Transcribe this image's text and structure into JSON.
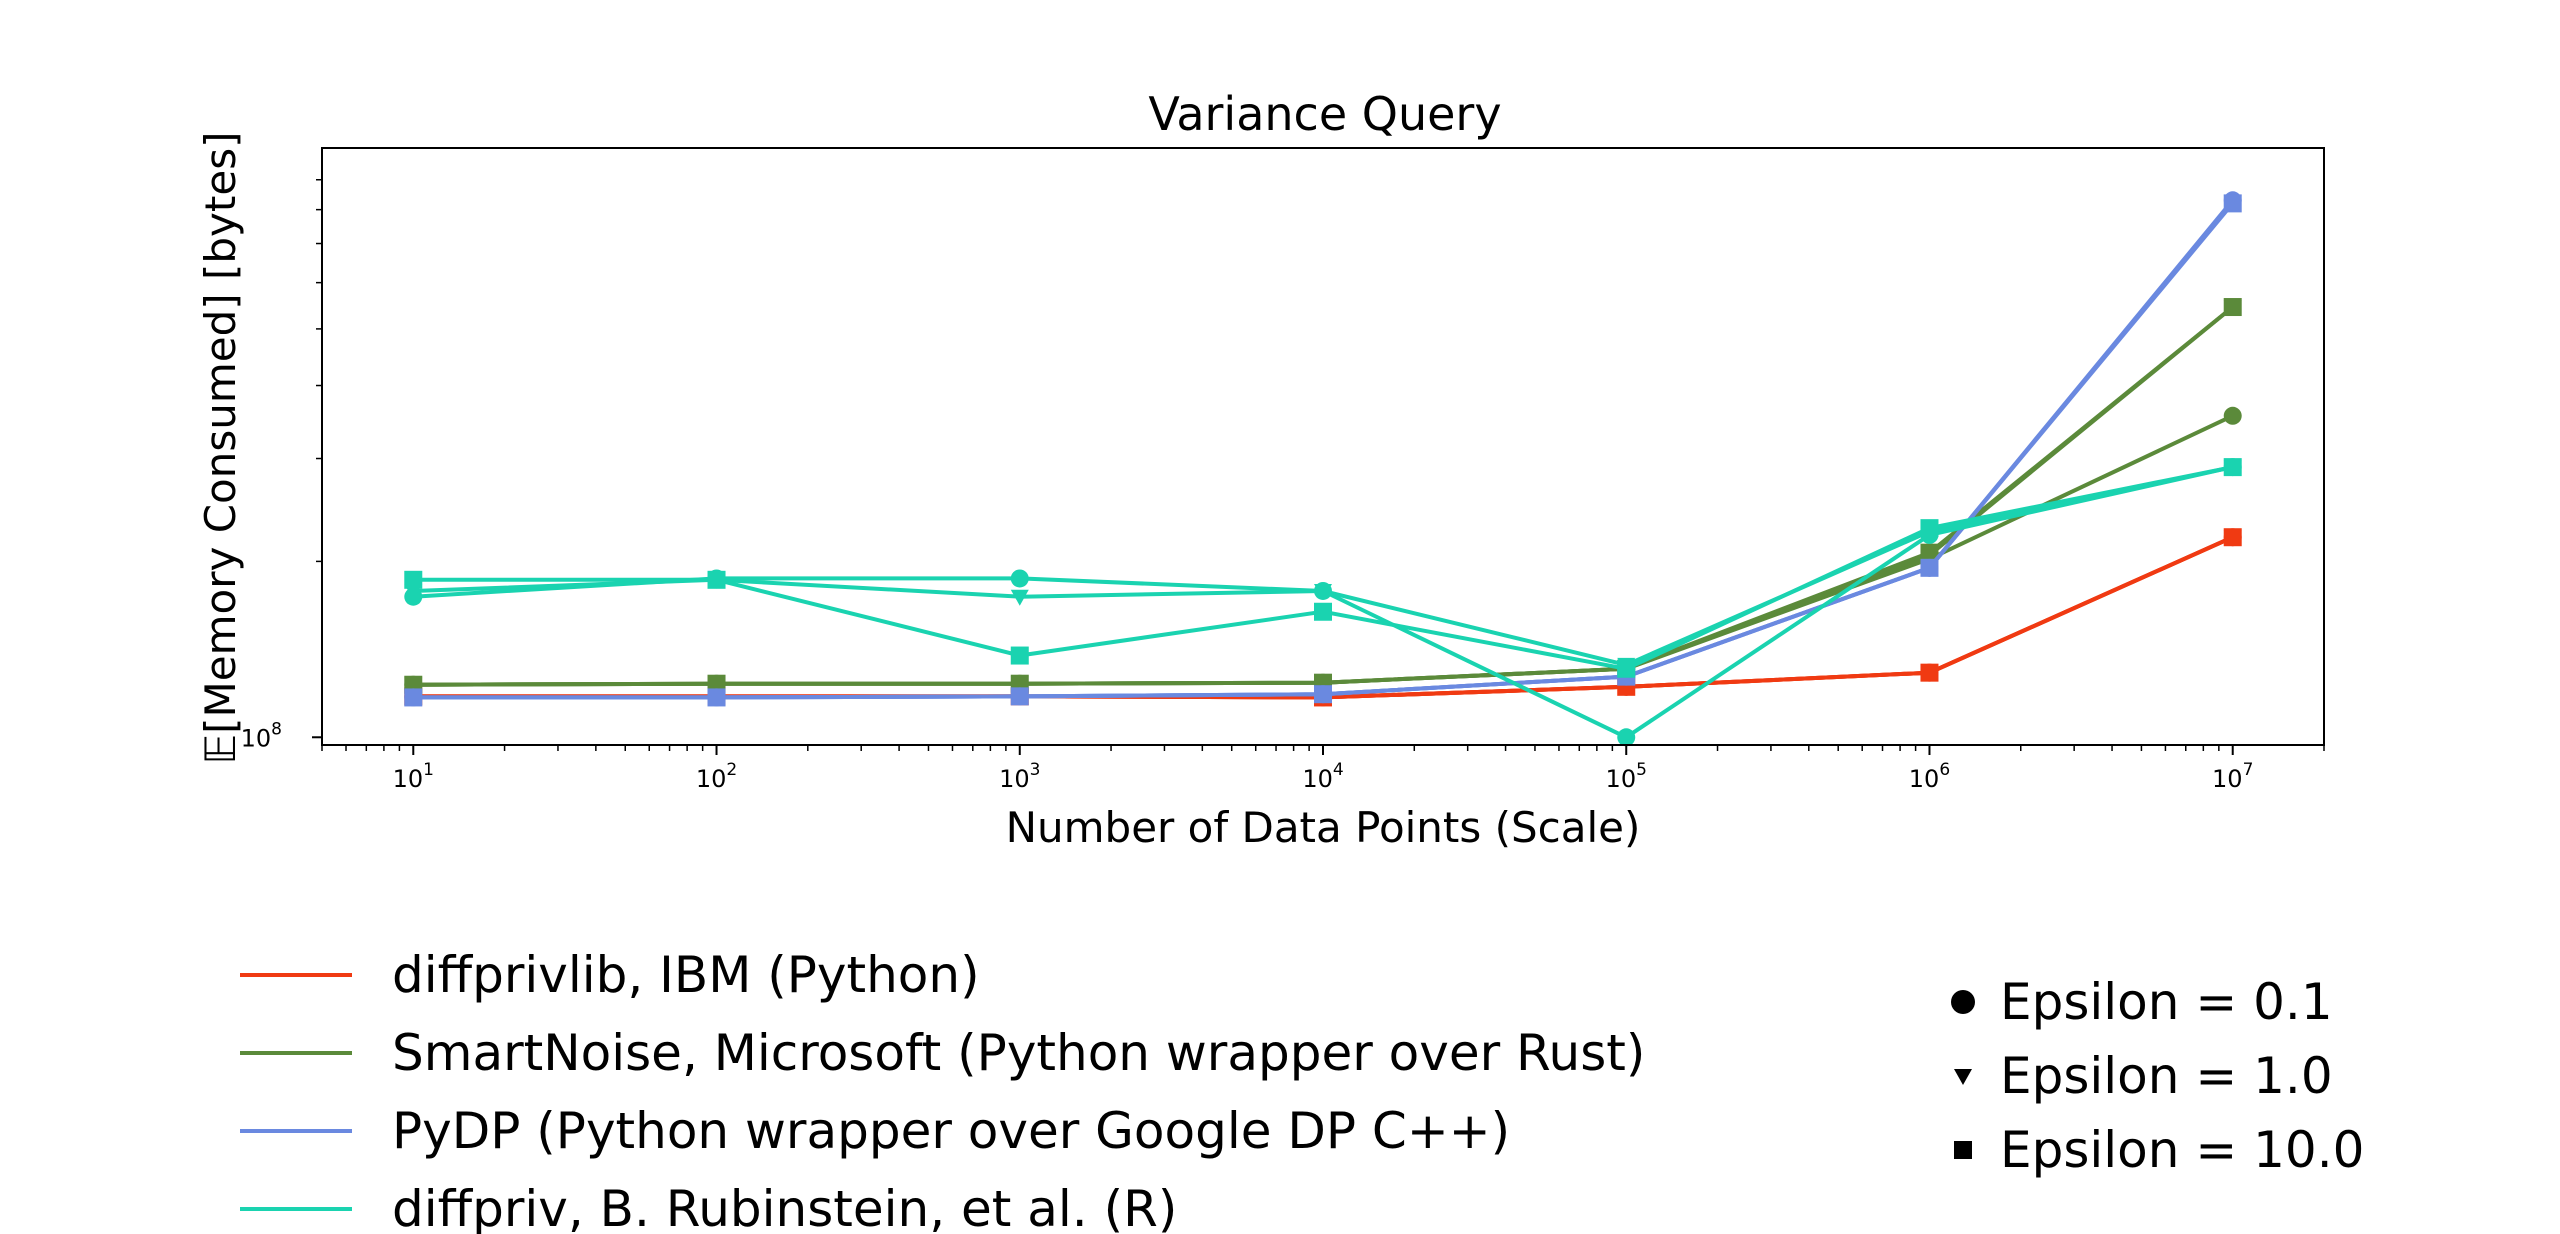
{
  "chart_data": {
    "type": "line",
    "title": "Variance Query",
    "xlabel": "Number of Data Points (Scale)",
    "ylabel": "𝔼[Memory Consumed] [bytes]",
    "x_scale": "log",
    "y_scale": "log",
    "xlim": [
      5,
      20000000
    ],
    "ylim": [
      97000000,
      1020000000
    ],
    "x": [
      10,
      100,
      1000,
      10000,
      100000,
      1000000,
      10000000
    ],
    "x_tick_labels": [
      {
        "base": "10",
        "exp": "1"
      },
      {
        "base": "10",
        "exp": "2"
      },
      {
        "base": "10",
        "exp": "3"
      },
      {
        "base": "10",
        "exp": "4"
      },
      {
        "base": "10",
        "exp": "5"
      },
      {
        "base": "10",
        "exp": "6"
      },
      {
        "base": "10",
        "exp": "7"
      }
    ],
    "y_tick_labels": [
      {
        "base": "10",
        "exp": "8",
        "value": 100000000
      }
    ],
    "grid": false,
    "series": [
      {
        "library": "diffprivlib, IBM (Python)",
        "epsilon": "Epsilon = 0.1",
        "color": "#f03a12",
        "values": [
          117500000,
          117500000,
          117500000,
          117000000,
          122000000,
          129000000,
          220000000
        ]
      },
      {
        "library": "diffprivlib, IBM (Python)",
        "epsilon": "Epsilon = 1.0",
        "color": "#f03a12",
        "values": [
          117500000,
          117500000,
          117500000,
          117000000,
          122000000,
          129000000,
          220000000
        ]
      },
      {
        "library": "diffprivlib, IBM (Python)",
        "epsilon": "Epsilon = 10.0",
        "color": "#f03a12",
        "values": [
          117500000,
          117500000,
          117500000,
          117000000,
          122000000,
          129000000,
          220000000
        ]
      },
      {
        "library": "SmartNoise, Microsoft (Python wrapper over Rust)",
        "epsilon": "Epsilon = 0.1",
        "color": "#5b8a3a",
        "values": [
          123000000,
          123500000,
          123500000,
          124000000,
          131000000,
          202000000,
          355000000
        ]
      },
      {
        "library": "SmartNoise, Microsoft (Python wrapper over Rust)",
        "epsilon": "Epsilon = 1.0",
        "color": "#5b8a3a",
        "values": [
          123000000,
          123500000,
          123500000,
          124000000,
          131000000,
          205000000,
          545000000
        ]
      },
      {
        "library": "SmartNoise, Microsoft (Python wrapper over Rust)",
        "epsilon": "Epsilon = 10.0",
        "color": "#5b8a3a",
        "values": [
          123000000,
          123500000,
          123500000,
          124000000,
          131000000,
          207000000,
          545000000
        ]
      },
      {
        "library": "PyDP (Python wrapper over Google DP C++)",
        "epsilon": "Epsilon = 0.1",
        "color": "#6a89e0",
        "values": [
          117000000,
          117000000,
          117500000,
          118500000,
          127000000,
          195000000,
          830000000
        ]
      },
      {
        "library": "PyDP (Python wrapper over Google DP C++)",
        "epsilon": "Epsilon = 1.0",
        "color": "#6a89e0",
        "values": [
          117000000,
          117000000,
          117500000,
          118500000,
          127000000,
          195000000,
          825000000
        ]
      },
      {
        "library": "PyDP (Python wrapper over Google DP C++)",
        "epsilon": "Epsilon = 10.0",
        "color": "#6a89e0",
        "values": [
          117000000,
          117000000,
          117500000,
          118500000,
          127000000,
          195000000,
          820000000
        ]
      },
      {
        "library": "diffpriv, B. Rubinstein, et al. (R)",
        "epsilon": "Epsilon = 0.1",
        "color": "#1ad3b0",
        "values": [
          174000000,
          187000000,
          187000000,
          178000000,
          100000000,
          222000000,
          290000000
        ]
      },
      {
        "library": "diffpriv, B. Rubinstein, et al. (R)",
        "epsilon": "Epsilon = 1.0",
        "color": "#1ad3b0",
        "values": [
          178000000,
          186000000,
          174000000,
          178000000,
          133000000,
          225000000,
          290000000
        ]
      },
      {
        "library": "diffpriv, B. Rubinstein, et al. (R)",
        "epsilon": "Epsilon = 10.0",
        "color": "#1ad3b0",
        "values": [
          186000000,
          186000000,
          138000000,
          164000000,
          131000000,
          228000000,
          290000000
        ]
      }
    ],
    "legend_libraries": {
      "placement": "bottom-left",
      "items": [
        {
          "label": "diffprivlib, IBM (Python)",
          "color": "#f03a12"
        },
        {
          "label": "SmartNoise, Microsoft (Python wrapper over Rust)",
          "color": "#5b8a3a"
        },
        {
          "label": "PyDP (Python wrapper over Google DP C++)",
          "color": "#6a89e0"
        },
        {
          "label": "diffpriv, B. Rubinstein, et al. (R)",
          "color": "#1ad3b0"
        }
      ]
    },
    "legend_markers": {
      "placement": "bottom-right",
      "items": [
        {
          "label": "Epsilon = 0.1",
          "marker": "circle"
        },
        {
          "label": "Epsilon = 1.0",
          "marker": "triangle-down"
        },
        {
          "label": "Epsilon = 10.0",
          "marker": "square"
        }
      ]
    }
  }
}
